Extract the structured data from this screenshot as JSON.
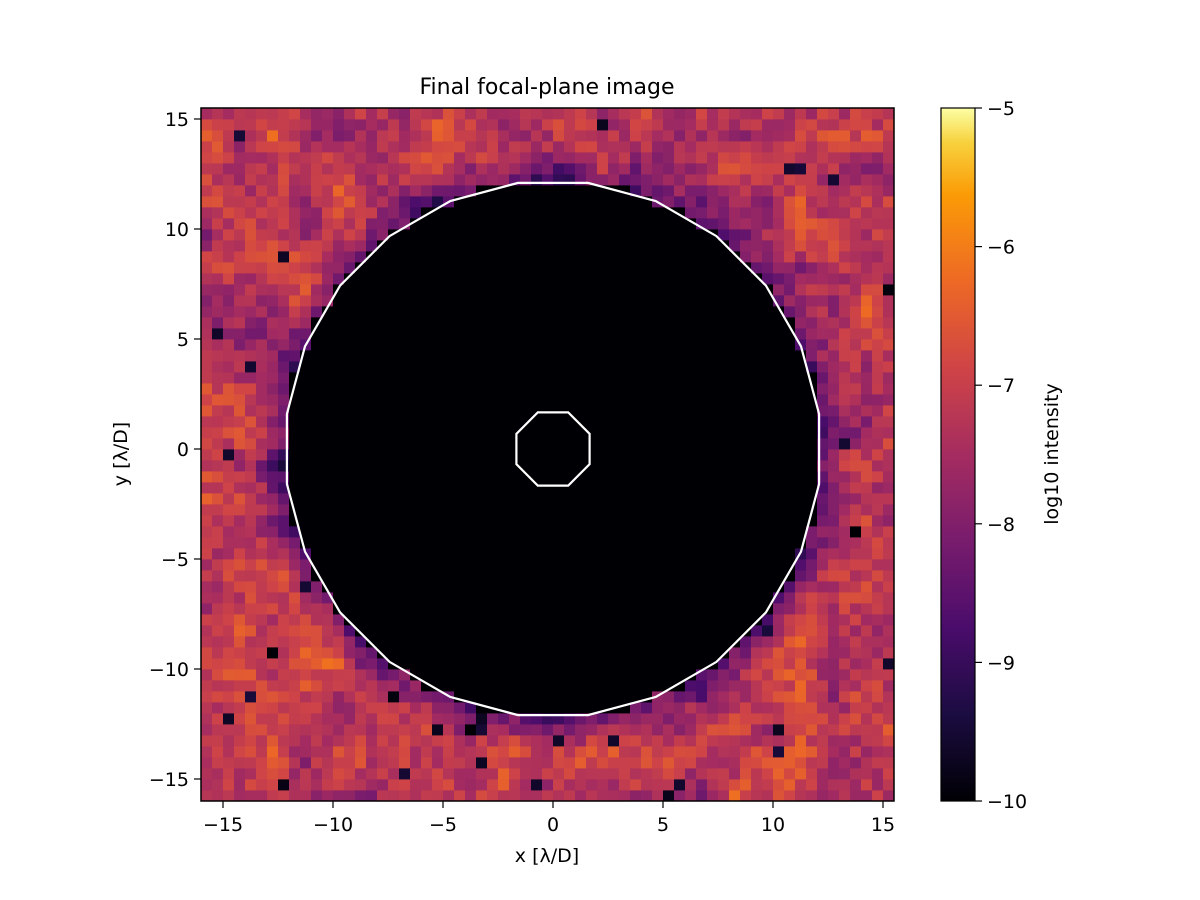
{
  "chart_data": {
    "type": "heatmap",
    "title": "Final focal-plane image",
    "xlabel": "x [λ/D]",
    "ylabel": "y [λ/D]",
    "xlim": [
      -16,
      15.5
    ],
    "ylim": [
      -16,
      15.5
    ],
    "x_ticks": [
      -15,
      -10,
      -5,
      0,
      5,
      10,
      15
    ],
    "y_ticks": [
      -15,
      -10,
      -5,
      0,
      5,
      10,
      15
    ],
    "grid": false,
    "colormap": "inferno",
    "colorbar": {
      "label": "log10 intensity",
      "range": [
        -10,
        -5
      ],
      "ticks": [
        -10,
        -9,
        -8,
        -7,
        -6,
        -5
      ]
    },
    "image": {
      "pixel_size": 0.5,
      "dark_hole_inner_radius": 1.8,
      "dark_hole_outer_radius": 12.2,
      "background_log10": -7.4,
      "dark_hole_log10": -10
    },
    "contour": {
      "color": "#ffffff",
      "inner_radius": 1.8,
      "outer_radius": 12.2
    }
  },
  "colors": {
    "contour": "#ffffff",
    "frame": "#000000"
  }
}
